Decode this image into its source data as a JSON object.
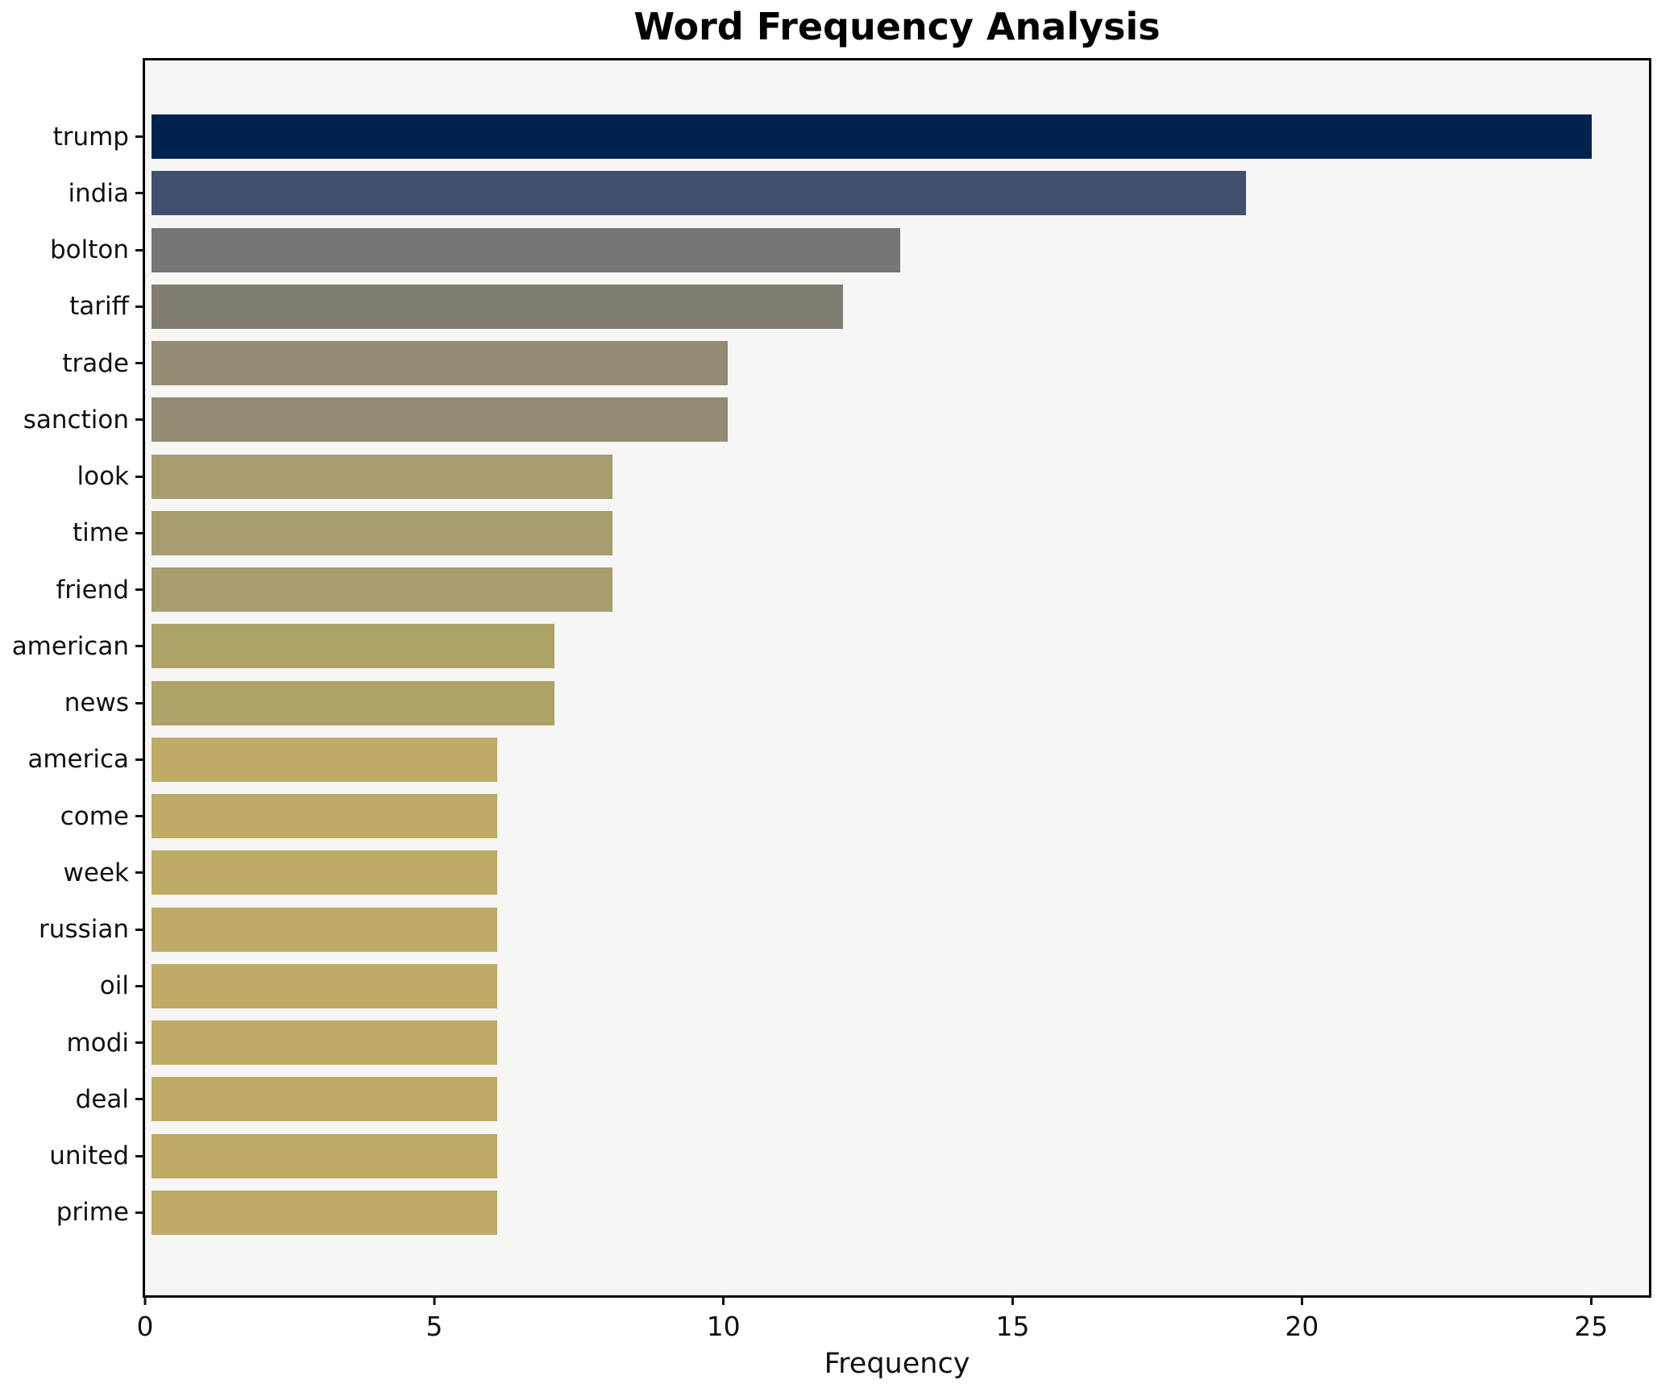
{
  "chart_data": {
    "type": "bar",
    "orientation": "horizontal",
    "title": "Word Frequency Analysis",
    "xlabel": "Frequency",
    "ylabel": "",
    "xlim": [
      0,
      26
    ],
    "xticks": [
      0,
      5,
      10,
      15,
      20,
      25
    ],
    "grid": false,
    "legend": "none",
    "colormap": "cividis mapped by value (high = dark blue, low = khaki)",
    "colors": {
      "figure_background": "#ffffff",
      "axes_background": "#f6f6f5",
      "spine": "#000000",
      "tick_text": "#111111"
    },
    "categories": [
      "trump",
      "india",
      "bolton",
      "tariff",
      "trade",
      "sanction",
      "look",
      "time",
      "friend",
      "american",
      "news",
      "america",
      "come",
      "week",
      "russian",
      "oil",
      "modi",
      "deal",
      "united",
      "prime"
    ],
    "values": [
      25,
      19,
      13,
      12,
      10,
      10,
      8,
      8,
      8,
      7,
      7,
      6,
      6,
      6,
      6,
      6,
      6,
      6,
      6,
      6
    ],
    "bar_colors": [
      "#00224e",
      "#414f6e",
      "#767675",
      "#7f7c72",
      "#938b72",
      "#938b72",
      "#a79d6f",
      "#a79d6f",
      "#a79d6f",
      "#ada369",
      "#ada369",
      "#beac66",
      "#beac66",
      "#beac66",
      "#beac66",
      "#beac66",
      "#beac66",
      "#beac66",
      "#beac66",
      "#beac66"
    ]
  }
}
